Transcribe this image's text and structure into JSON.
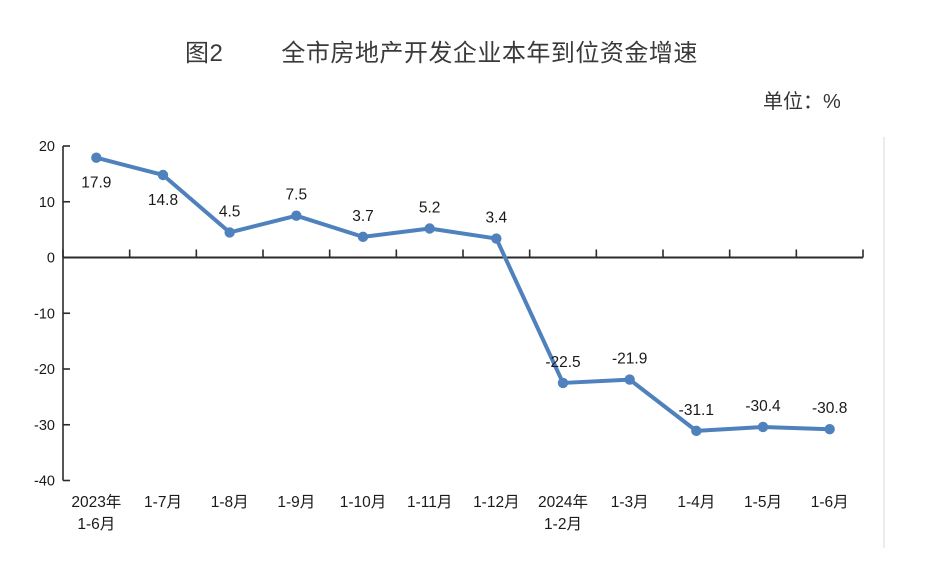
{
  "header": {
    "figure_label": "图2",
    "title": "全市房地产开发企业本年到位资金增速",
    "unit_label": "单位：%"
  },
  "chart_data": {
    "type": "line",
    "title": "图2 全市房地产开发企业本年到位资金增速",
    "unit": "单位：%",
    "xlabel": "",
    "ylabel": "%",
    "categories": [
      "2023年\n1-6月",
      "1-7月",
      "1-8月",
      "1-9月",
      "1-10月",
      "1-11月",
      "1-12月",
      "2024年\n1-2月",
      "1-3月",
      "1-4月",
      "1-5月",
      "1-6月"
    ],
    "values": [
      17.9,
      14.8,
      4.5,
      7.5,
      3.7,
      5.2,
      3.4,
      -22.5,
      -21.9,
      -31.1,
      -30.4,
      -30.8
    ],
    "data_labels": [
      "17.9",
      "14.8",
      "4.5",
      "7.5",
      "3.7",
      "5.2",
      "3.4",
      "-22.5",
      "-21.9",
      "-31.1",
      "-30.4",
      "-30.8"
    ],
    "label_placement": [
      "below",
      "below",
      "above",
      "above",
      "above",
      "above",
      "above",
      "above",
      "above",
      "above",
      "above",
      "above"
    ],
    "ylim": [
      -40,
      20
    ],
    "yticks": [
      20,
      10,
      0,
      -10,
      -20,
      -30,
      -40
    ],
    "grid": false,
    "legend": "none",
    "colors": {
      "line": "#4f81bd",
      "marker": "#4f81bd",
      "axis": "#2b2b2b",
      "text": "#1a1a1a",
      "title_text": "#3a3a3a",
      "plot_right_border": "#ececec"
    }
  }
}
